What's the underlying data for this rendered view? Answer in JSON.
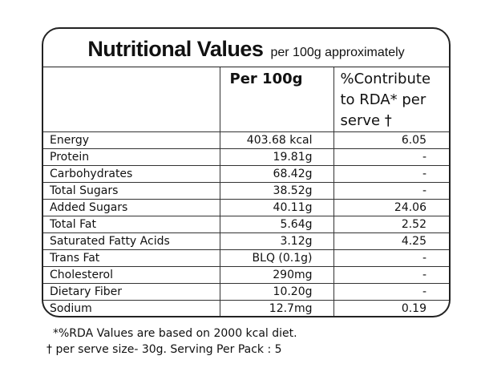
{
  "header": {
    "title": "Nutritional Values",
    "subtitle": "per 100g approximately"
  },
  "table": {
    "columns": [
      "",
      "Per 100g",
      "%Contribute to RDA* per serve †"
    ],
    "rows": [
      [
        "Energy",
        "403.68 kcal",
        "6.05"
      ],
      [
        "Protein",
        "19.81g",
        "-"
      ],
      [
        "Carbohydrates",
        "68.42g",
        "-"
      ],
      [
        "Total Sugars",
        "38.52g",
        "-"
      ],
      [
        "Added Sugars",
        "40.11g",
        "24.06"
      ],
      [
        "Total Fat",
        "5.64g",
        "2.52"
      ],
      [
        "Saturated Fatty Acids",
        "3.12g",
        "4.25"
      ],
      [
        "Trans Fat",
        "BLQ (0.1g)",
        "-"
      ],
      [
        "Cholesterol",
        "290mg",
        "-"
      ],
      [
        "Dietary Fiber",
        "10.20g",
        "-"
      ],
      [
        "Sodium",
        "12.7mg",
        "0.19"
      ]
    ]
  },
  "footnotes": [
    "*%RDA Values are based on 2000 kcal diet.",
    "† per serve size- 30g.  Serving Per Pack : 5"
  ]
}
